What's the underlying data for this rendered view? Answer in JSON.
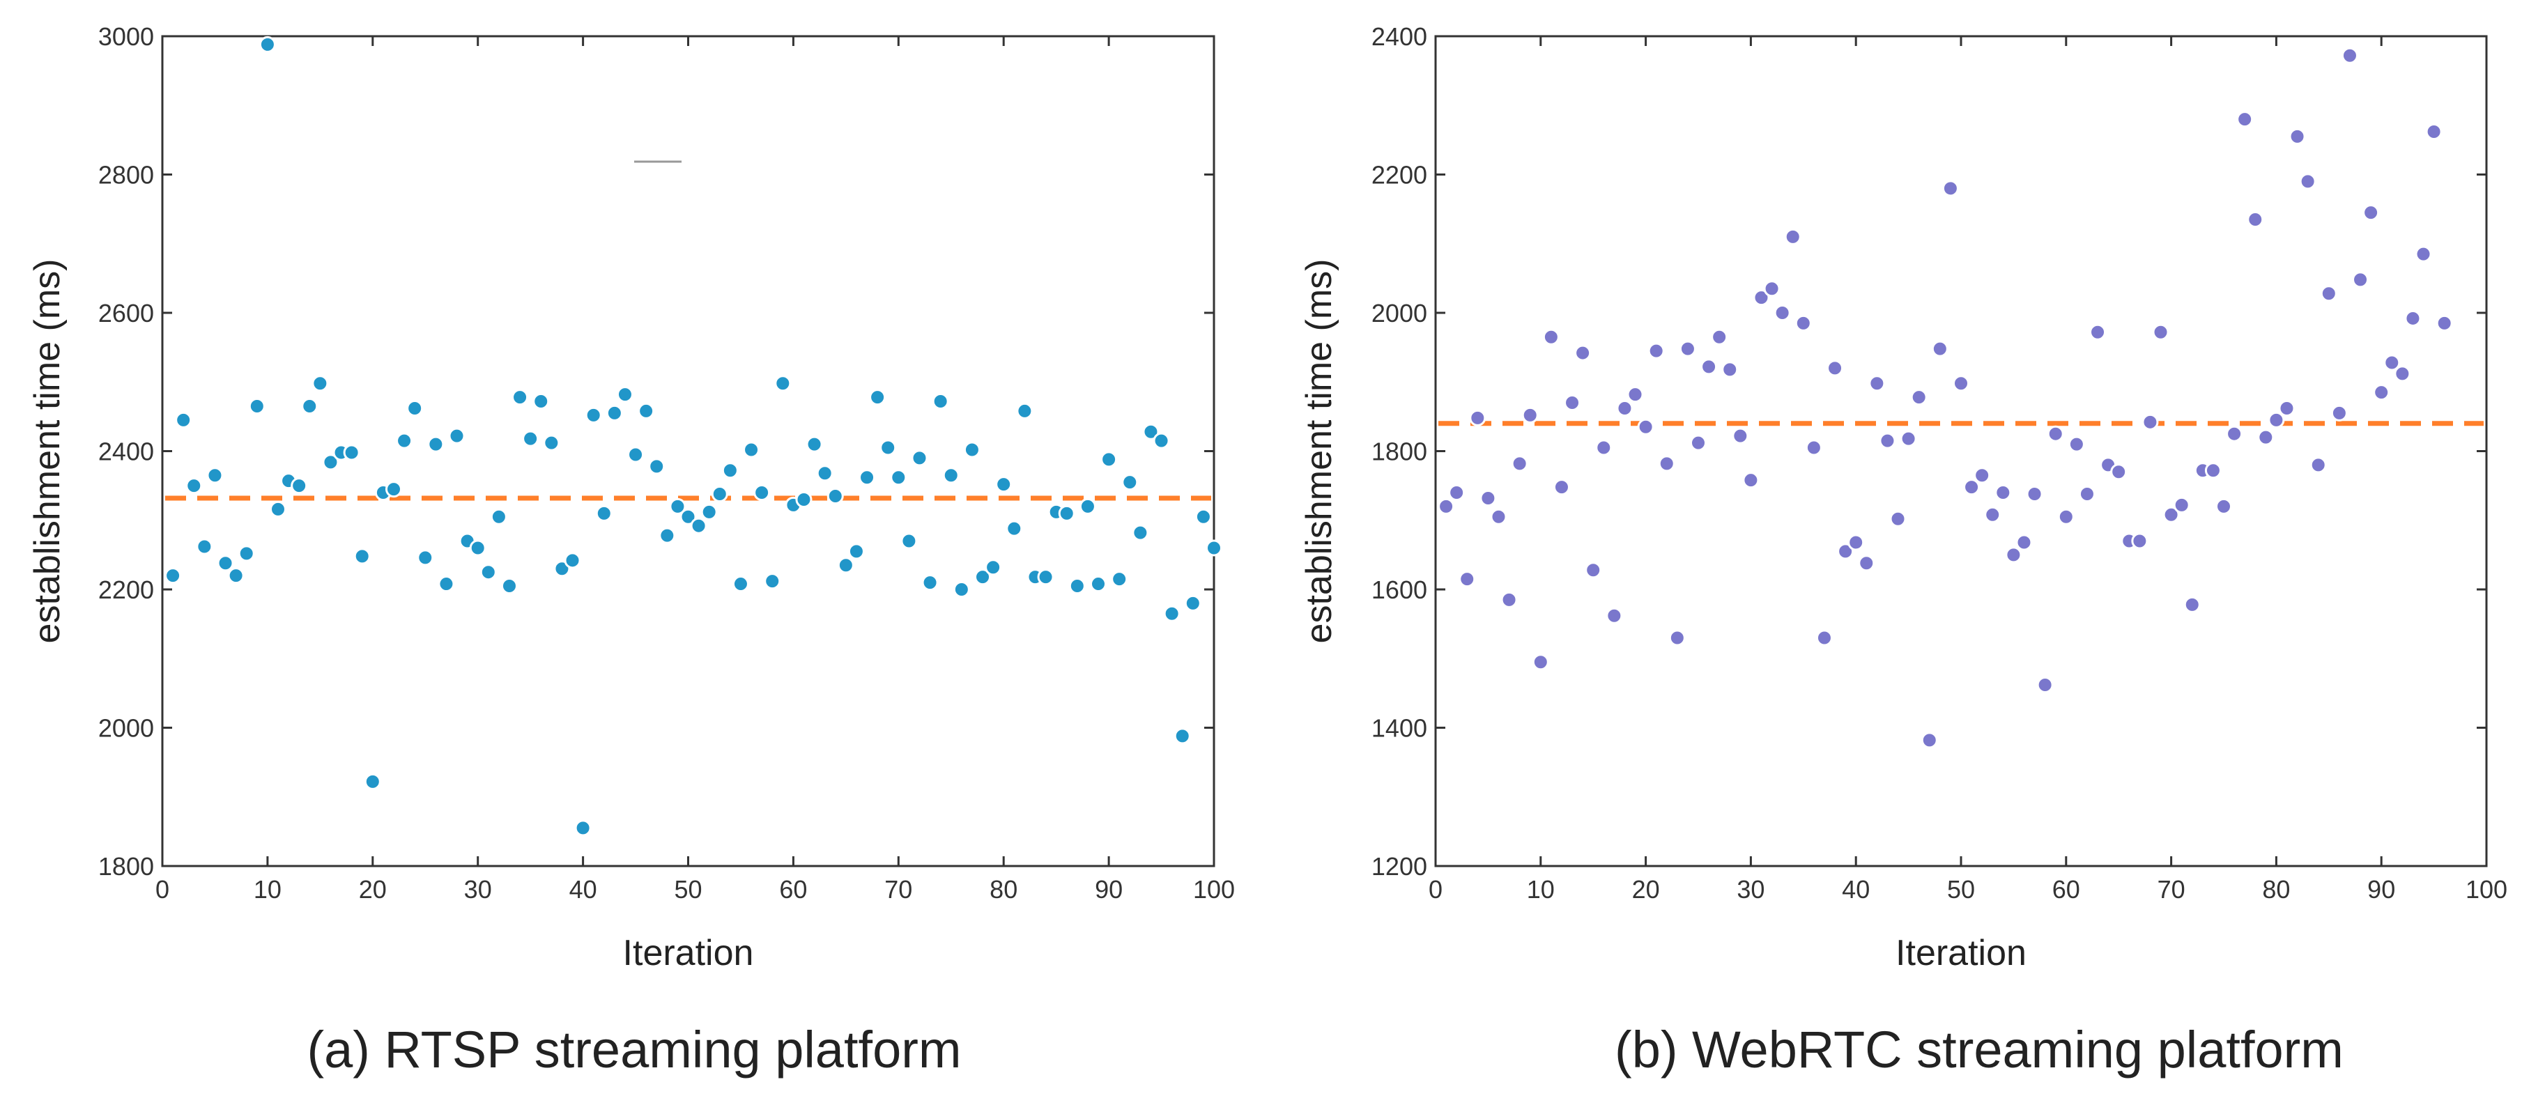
{
  "chart_data": [
    {
      "type": "scatter",
      "caption": "(a) RTSP streaming platform",
      "xlabel": "Iteration",
      "ylabel": "establishment time (ms)",
      "xlim": [
        0,
        100
      ],
      "ylim": [
        1800,
        3000
      ],
      "xticks": [
        0,
        10,
        20,
        30,
        40,
        50,
        60,
        70,
        80,
        90,
        100
      ],
      "yticks": [
        1800,
        2000,
        2200,
        2400,
        2600,
        2800,
        3000
      ],
      "marker_color": "#2196c9",
      "mean_line": {
        "value": 2332,
        "color": "#ff7f2a"
      },
      "series": [
        {
          "name": "RTSP",
          "x": [
            1,
            2,
            3,
            4,
            5,
            6,
            7,
            8,
            9,
            10,
            11,
            12,
            13,
            14,
            15,
            16,
            17,
            18,
            19,
            20,
            21,
            22,
            23,
            24,
            25,
            26,
            27,
            28,
            29,
            30,
            31,
            32,
            33,
            34,
            35,
            36,
            37,
            38,
            39,
            40,
            41,
            42,
            43,
            44,
            45,
            46,
            47,
            48,
            49,
            50,
            51,
            52,
            53,
            54,
            55,
            56,
            57,
            58,
            59,
            60,
            61,
            62,
            63,
            64,
            65,
            66,
            67,
            68,
            69,
            70,
            71,
            72,
            73,
            74,
            75,
            76,
            77,
            78,
            79,
            80,
            81,
            82,
            83,
            84,
            85,
            86,
            87,
            88,
            89,
            90,
            91,
            92,
            93,
            94,
            95,
            96,
            97,
            98,
            99,
            100
          ],
          "y": [
            2220,
            2445,
            2350,
            2262,
            2365,
            2238,
            2220,
            2252,
            2465,
            2988,
            2316,
            2357,
            2350,
            2465,
            2498,
            2384,
            2398,
            2398,
            2248,
            1922,
            2340,
            2345,
            2415,
            2462,
            2246,
            2410,
            2208,
            2422,
            2270,
            2260,
            2225,
            2305,
            2205,
            2478,
            2418,
            2472,
            2412,
            2230,
            2242,
            1855,
            2452,
            2310,
            2455,
            2482,
            2395,
            2458,
            2378,
            2278,
            2320,
            2305,
            2292,
            2312,
            2338,
            2372,
            2208,
            2402,
            2340,
            2212,
            2498,
            2322,
            2330,
            2410,
            2368,
            2335,
            2235,
            2255,
            2362,
            2478,
            2405,
            2362,
            2270,
            2390,
            2210,
            2472,
            2365,
            2200,
            2402,
            2218,
            2232,
            2352,
            2288,
            2458,
            2218,
            2218,
            2312,
            2310,
            2205,
            2320,
            2208,
            2388,
            2215,
            2355,
            2282,
            2428,
            2415,
            2165,
            1988,
            2180,
            2305,
            2260
          ]
        }
      ]
    },
    {
      "type": "scatter",
      "caption": "(b) WebRTC streaming platform",
      "xlabel": "Iteration",
      "ylabel": "establishment time (ms)",
      "xlim": [
        0,
        100
      ],
      "ylim": [
        1200,
        2400
      ],
      "xticks": [
        0,
        10,
        20,
        30,
        40,
        50,
        60,
        70,
        80,
        90,
        100
      ],
      "yticks": [
        1200,
        1400,
        1600,
        1800,
        2000,
        2200,
        2400
      ],
      "marker_color": "#7a77cc",
      "mean_line": {
        "value": 1840,
        "color": "#ff7f2a"
      },
      "series": [
        {
          "name": "WebRTC",
          "x": [
            1,
            2,
            3,
            4,
            5,
            6,
            7,
            8,
            9,
            10,
            11,
            12,
            13,
            14,
            15,
            16,
            17,
            18,
            19,
            20,
            21,
            22,
            23,
            24,
            25,
            26,
            27,
            28,
            29,
            30,
            31,
            32,
            33,
            34,
            35,
            36,
            37,
            38,
            39,
            40,
            41,
            42,
            43,
            44,
            45,
            46,
            47,
            48,
            49,
            50,
            51,
            52,
            53,
            54,
            55,
            56,
            57,
            58,
            59,
            60,
            61,
            62,
            63,
            64,
            65,
            66,
            67,
            68,
            69,
            70,
            71,
            72,
            73,
            74,
            75,
            76,
            77,
            78,
            79,
            80,
            81,
            82,
            83,
            84,
            85,
            86,
            87,
            88,
            89,
            90,
            91,
            92,
            93,
            94,
            95,
            96
          ],
          "y": [
            1720,
            1740,
            1615,
            1848,
            1732,
            1705,
            1585,
            1782,
            1852,
            1495,
            1965,
            1748,
            1870,
            1942,
            1628,
            1805,
            1562,
            1862,
            1882,
            1835,
            1945,
            1782,
            1530,
            1948,
            1812,
            1922,
            1965,
            1918,
            1822,
            1758,
            2022,
            2035,
            2000,
            2110,
            1985,
            1805,
            1530,
            1920,
            1655,
            1668,
            1638,
            1898,
            1815,
            1702,
            1818,
            1878,
            1382,
            1948,
            2180,
            1898,
            1748,
            1765,
            1708,
            1740,
            1650,
            1668,
            1738,
            1462,
            1825,
            1705,
            1810,
            1738,
            1972,
            1780,
            1770,
            1670,
            1670,
            1842,
            1972,
            1708,
            1722,
            1578,
            1772,
            1772,
            1720,
            1825,
            2280,
            2135,
            1820,
            1845,
            1862,
            2255,
            2190,
            1780,
            2028,
            1855,
            2372,
            2048,
            2145,
            1885,
            1928,
            1912,
            1992,
            2085,
            2262,
            1985
          ]
        }
      ]
    }
  ]
}
